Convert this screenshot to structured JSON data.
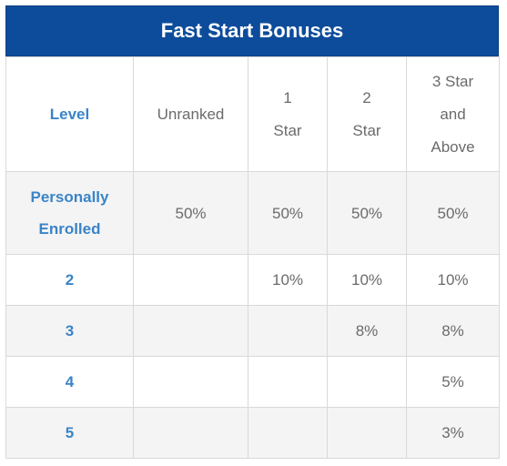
{
  "title": "Fast Start Bonuses",
  "header": {
    "level": "Level",
    "unranked": "Unranked",
    "one_star": [
      "1",
      "Star"
    ],
    "two_star": [
      "2",
      "Star"
    ],
    "three_star": [
      "3 Star",
      "and",
      "Above"
    ]
  },
  "rows": [
    {
      "level": [
        "Personally",
        "Enrolled"
      ],
      "unranked": "50%",
      "one_star": "50%",
      "two_star": "50%",
      "three_star": "50%"
    },
    {
      "level": "2",
      "unranked": "",
      "one_star": "10%",
      "two_star": "10%",
      "three_star": "10%"
    },
    {
      "level": "3",
      "unranked": "",
      "one_star": "",
      "two_star": "8%",
      "three_star": "8%"
    },
    {
      "level": "4",
      "unranked": "",
      "one_star": "",
      "two_star": "",
      "three_star": "5%"
    },
    {
      "level": "5",
      "unranked": "",
      "one_star": "",
      "two_star": "",
      "three_star": "3%"
    }
  ]
}
